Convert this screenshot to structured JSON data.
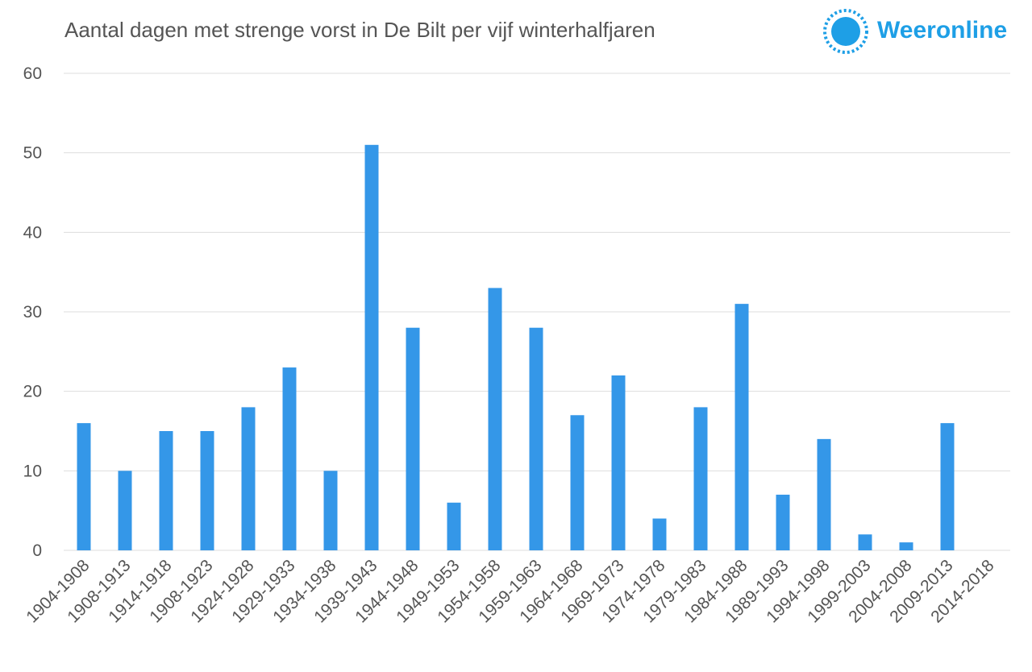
{
  "header": {
    "title": "Aantal dagen met strenge vorst in De Bilt per vijf winterhalfjaren",
    "brand_name": "Weeronline",
    "brand_color": "#1e9fe6"
  },
  "chart_data": {
    "type": "bar",
    "title": "Aantal dagen met strenge vorst in De Bilt per vijf winterhalfjaren",
    "xlabel": "",
    "ylabel": "",
    "ylim": [
      0,
      60
    ],
    "yticks": [
      0,
      10,
      20,
      30,
      40,
      50,
      60
    ],
    "grid": true,
    "bar_color": "#3497e8",
    "categories": [
      "1904-1908",
      "1908-1913",
      "1914-1918",
      "1908-1923",
      "1924-1928",
      "1929-1933",
      "1934-1938",
      "1939-1943",
      "1944-1948",
      "1949-1953",
      "1954-1958",
      "1959-1963",
      "1964-1968",
      "1969-1973",
      "1974-1978",
      "1979-1983",
      "1984-1988",
      "1989-1993",
      "1994-1998",
      "1999-2003",
      "2004-2008",
      "2009-2013",
      "2014-2018"
    ],
    "values": [
      16,
      10,
      15,
      15,
      18,
      23,
      10,
      51,
      28,
      6,
      33,
      28,
      17,
      22,
      4,
      18,
      31,
      7,
      14,
      2,
      1,
      16,
      0
    ]
  }
}
